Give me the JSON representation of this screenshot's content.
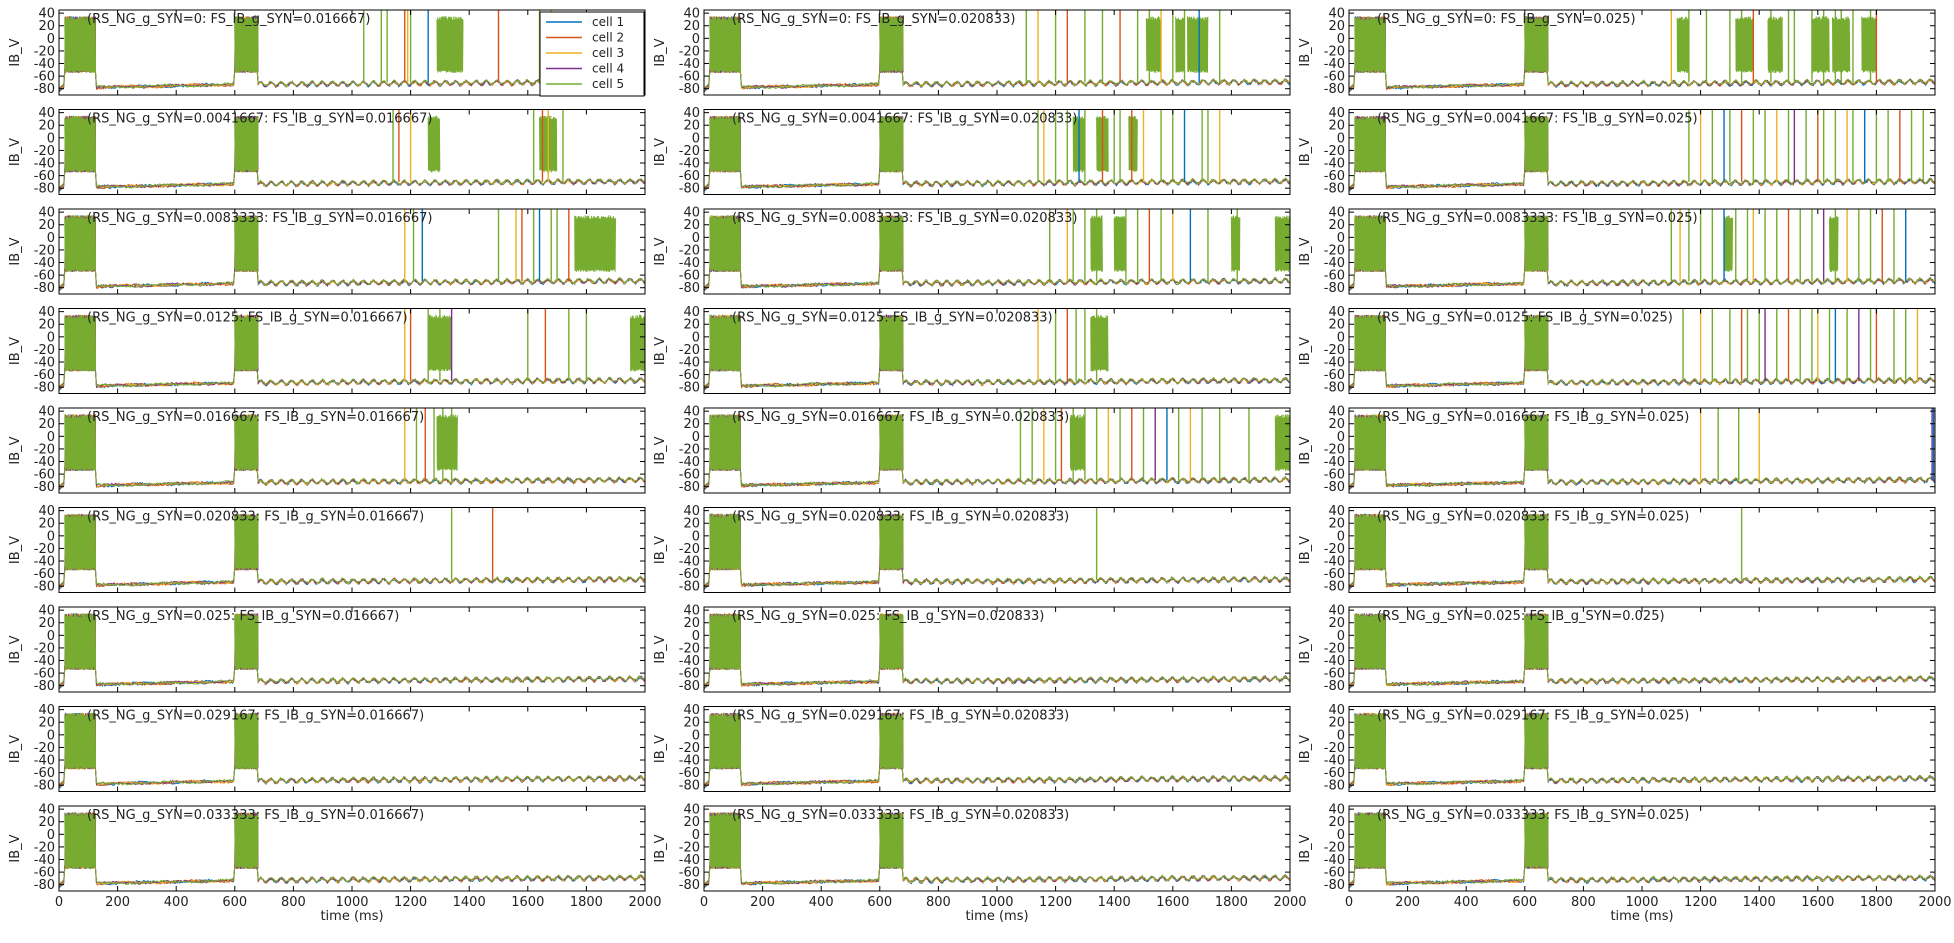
{
  "chart_data": {
    "type": "line",
    "grid_rows": 9,
    "grid_cols": 3,
    "ylabel": "IB_V",
    "xlabel": "time (ms)",
    "xlim": [
      0,
      2000
    ],
    "ylim": [
      -90,
      45
    ],
    "x_ticks": [
      0,
      200,
      400,
      600,
      800,
      1000,
      1200,
      1400,
      1600,
      1800,
      2000
    ],
    "y_ticks": [
      40,
      20,
      0,
      -20,
      -40,
      -60,
      -80
    ],
    "grid": false,
    "legend_position": "top-right of first panel",
    "series": [
      {
        "name": "cell 1",
        "color": "#0072BD"
      },
      {
        "name": "cell 2",
        "color": "#D95319"
      },
      {
        "name": "cell 3",
        "color": "#EDB120"
      },
      {
        "name": "cell 4",
        "color": "#7E2F8E"
      },
      {
        "name": "cell 5",
        "color": "#77AC30"
      }
    ],
    "baseline_mv": -70,
    "burst_windows_ms": [
      [
        20,
        125
      ],
      [
        600,
        680
      ]
    ],
    "burst_range_mv": [
      -55,
      35
    ],
    "spike_peak_mv": 45,
    "panels": [
      {
        "title": "(RS_NG_g_SYN=0: FS_IB_g_SYN=0.016667)",
        "spikes": [
          [
            1040,
            5
          ],
          [
            1100,
            5
          ],
          [
            1120,
            5
          ],
          [
            1180,
            2
          ],
          [
            1190,
            3
          ],
          [
            1200,
            5
          ],
          [
            1260,
            1
          ],
          [
            1500,
            2
          ],
          [
            1640,
            5
          ],
          [
            1680,
            3
          ]
        ],
        "plateaus": [
          [
            1290,
            1380
          ],
          [
            1670,
            1720
          ]
        ]
      },
      {
        "title": "(RS_NG_g_SYN=0: FS_IB_g_SYN=0.020833)",
        "spikes": [
          [
            1100,
            5
          ],
          [
            1140,
            3
          ],
          [
            1200,
            5
          ],
          [
            1240,
            2
          ],
          [
            1300,
            5
          ],
          [
            1360,
            5
          ],
          [
            1420,
            2
          ],
          [
            1480,
            5
          ],
          [
            1520,
            5
          ],
          [
            1560,
            3
          ],
          [
            1600,
            5
          ],
          [
            1640,
            5
          ],
          [
            1690,
            1
          ],
          [
            1760,
            5
          ]
        ],
        "plateaus": [
          [
            1510,
            1560
          ],
          [
            1610,
            1640
          ],
          [
            1650,
            1720
          ]
        ]
      },
      {
        "title": "(RS_NG_g_SYN=0: FS_IB_g_SYN=0.025)",
        "spikes": [
          [
            1100,
            3
          ],
          [
            1160,
            5
          ],
          [
            1220,
            5
          ],
          [
            1300,
            5
          ],
          [
            1340,
            5
          ],
          [
            1380,
            2
          ],
          [
            1440,
            5
          ],
          [
            1500,
            5
          ],
          [
            1520,
            5
          ],
          [
            1580,
            5
          ],
          [
            1620,
            5
          ],
          [
            1660,
            5
          ],
          [
            1680,
            5
          ],
          [
            1720,
            5
          ],
          [
            1780,
            5
          ],
          [
            1800,
            2
          ]
        ],
        "plateaus": [
          [
            1120,
            1160
          ],
          [
            1320,
            1380
          ],
          [
            1430,
            1480
          ],
          [
            1580,
            1640
          ],
          [
            1650,
            1710
          ],
          [
            1750,
            1800
          ]
        ]
      },
      {
        "title": "(RS_NG_g_SYN=0.0041667: FS_IB_g_SYN=0.016667)",
        "spikes": [
          [
            1140,
            5
          ],
          [
            1160,
            2
          ],
          [
            1200,
            3
          ],
          [
            1620,
            5
          ],
          [
            1650,
            2
          ],
          [
            1670,
            3
          ],
          [
            1720,
            5
          ]
        ],
        "plateaus": [
          [
            1260,
            1300
          ],
          [
            1640,
            1700
          ]
        ]
      },
      {
        "title": "(RS_NG_g_SYN=0.0041667: FS_IB_g_SYN=0.020833)",
        "spikes": [
          [
            1140,
            5
          ],
          [
            1160,
            3
          ],
          [
            1200,
            5
          ],
          [
            1240,
            5
          ],
          [
            1280,
            1
          ],
          [
            1300,
            5
          ],
          [
            1360,
            2
          ],
          [
            1400,
            5
          ],
          [
            1420,
            5
          ],
          [
            1460,
            2
          ],
          [
            1500,
            3
          ],
          [
            1560,
            5
          ],
          [
            1600,
            5
          ],
          [
            1640,
            1
          ],
          [
            1700,
            5
          ],
          [
            1720,
            5
          ],
          [
            1760,
            3
          ]
        ],
        "plateaus": [
          [
            1260,
            1300
          ],
          [
            1340,
            1380
          ],
          [
            1450,
            1480
          ]
        ]
      },
      {
        "title": "(RS_NG_g_SYN=0.0041667: FS_IB_g_SYN=0.025)",
        "spikes": [
          [
            1160,
            5
          ],
          [
            1200,
            3
          ],
          [
            1240,
            5
          ],
          [
            1280,
            1
          ],
          [
            1300,
            5
          ],
          [
            1340,
            2
          ],
          [
            1380,
            5
          ],
          [
            1420,
            5
          ],
          [
            1460,
            3
          ],
          [
            1500,
            5
          ],
          [
            1520,
            4
          ],
          [
            1560,
            5
          ],
          [
            1600,
            2
          ],
          [
            1620,
            5
          ],
          [
            1660,
            5
          ],
          [
            1700,
            3
          ],
          [
            1720,
            5
          ],
          [
            1760,
            1
          ],
          [
            1800,
            5
          ],
          [
            1840,
            5
          ],
          [
            1880,
            2
          ],
          [
            1920,
            5
          ],
          [
            1960,
            5
          ]
        ],
        "plateaus": []
      },
      {
        "title": "(RS_NG_g_SYN=0.0083333: FS_IB_g_SYN=0.016667)",
        "spikes": [
          [
            1180,
            3
          ],
          [
            1210,
            5
          ],
          [
            1240,
            1
          ],
          [
            1500,
            5
          ],
          [
            1560,
            3
          ],
          [
            1580,
            2
          ],
          [
            1620,
            5
          ],
          [
            1640,
            1
          ],
          [
            1680,
            5
          ],
          [
            1700,
            5
          ],
          [
            1740,
            2
          ]
        ],
        "plateaus": [
          [
            1760,
            1900
          ]
        ]
      },
      {
        "title": "(RS_NG_g_SYN=0.0083333: FS_IB_g_SYN=0.020833)",
        "spikes": [
          [
            1180,
            5
          ],
          [
            1240,
            3
          ],
          [
            1260,
            5
          ],
          [
            1300,
            5
          ],
          [
            1340,
            5
          ],
          [
            1440,
            5
          ],
          [
            1480,
            5
          ],
          [
            1520,
            2
          ],
          [
            1560,
            5
          ],
          [
            1600,
            3
          ],
          [
            1660,
            1
          ],
          [
            1720,
            5
          ],
          [
            1820,
            5
          ]
        ],
        "plateaus": [
          [
            1320,
            1360
          ],
          [
            1400,
            1440
          ],
          [
            1800,
            1830
          ],
          [
            1950,
            2000
          ]
        ]
      },
      {
        "title": "(RS_NG_g_SYN=0.0083333: FS_IB_g_SYN=0.025)",
        "spikes": [
          [
            1100,
            5
          ],
          [
            1130,
            3
          ],
          [
            1160,
            5
          ],
          [
            1200,
            5
          ],
          [
            1240,
            5
          ],
          [
            1280,
            1
          ],
          [
            1320,
            5
          ],
          [
            1360,
            5
          ],
          [
            1380,
            3
          ],
          [
            1420,
            5
          ],
          [
            1460,
            5
          ],
          [
            1500,
            2
          ],
          [
            1540,
            5
          ],
          [
            1580,
            5
          ],
          [
            1620,
            4
          ],
          [
            1660,
            5
          ],
          [
            1700,
            3
          ],
          [
            1740,
            5
          ],
          [
            1780,
            5
          ],
          [
            1820,
            2
          ],
          [
            1860,
            5
          ],
          [
            1900,
            1
          ]
        ],
        "plateaus": [
          [
            1280,
            1310
          ],
          [
            1640,
            1670
          ]
        ]
      },
      {
        "title": "(RS_NG_g_SYN=0.0125: FS_IB_g_SYN=0.016667)",
        "spikes": [
          [
            1180,
            3
          ],
          [
            1200,
            2
          ],
          [
            1260,
            5
          ],
          [
            1300,
            5
          ],
          [
            1340,
            4
          ],
          [
            1600,
            5
          ],
          [
            1660,
            2
          ],
          [
            1740,
            5
          ],
          [
            1800,
            5
          ]
        ],
        "plateaus": [
          [
            1260,
            1340
          ],
          [
            1950,
            2000
          ]
        ]
      },
      {
        "title": "(RS_NG_g_SYN=0.0125: FS_IB_g_SYN=0.020833)",
        "spikes": [
          [
            1140,
            3
          ],
          [
            1200,
            5
          ],
          [
            1240,
            2
          ],
          [
            1270,
            5
          ],
          [
            1300,
            5
          ],
          [
            1340,
            5
          ]
        ],
        "plateaus": [
          [
            1320,
            1380
          ]
        ]
      },
      {
        "title": "(RS_NG_g_SYN=0.0125: FS_IB_g_SYN=0.025)",
        "spikes": [
          [
            1140,
            5
          ],
          [
            1200,
            3
          ],
          [
            1240,
            5
          ],
          [
            1300,
            5
          ],
          [
            1340,
            2
          ],
          [
            1360,
            5
          ],
          [
            1400,
            5
          ],
          [
            1420,
            4
          ],
          [
            1460,
            5
          ],
          [
            1500,
            2
          ],
          [
            1540,
            5
          ],
          [
            1580,
            5
          ],
          [
            1600,
            3
          ],
          [
            1640,
            5
          ],
          [
            1660,
            1
          ],
          [
            1700,
            5
          ],
          [
            1740,
            4
          ],
          [
            1780,
            5
          ],
          [
            1800,
            2
          ],
          [
            1860,
            5
          ],
          [
            1900,
            5
          ],
          [
            1940,
            3
          ]
        ],
        "plateaus": []
      },
      {
        "title": "(RS_NG_g_SYN=0.016667: FS_IB_g_SYN=0.016667)",
        "spikes": [
          [
            1180,
            3
          ],
          [
            1220,
            5
          ],
          [
            1250,
            2
          ],
          [
            1280,
            5
          ],
          [
            1310,
            5
          ],
          [
            1340,
            5
          ]
        ],
        "plateaus": [
          [
            1290,
            1360
          ]
        ]
      },
      {
        "title": "(RS_NG_g_SYN=0.016667: FS_IB_g_SYN=0.020833)",
        "spikes": [
          [
            1080,
            5
          ],
          [
            1120,
            5
          ],
          [
            1160,
            3
          ],
          [
            1200,
            5
          ],
          [
            1220,
            2
          ],
          [
            1260,
            5
          ],
          [
            1300,
            5
          ],
          [
            1340,
            5
          ],
          [
            1380,
            3
          ],
          [
            1420,
            5
          ],
          [
            1460,
            2
          ],
          [
            1500,
            5
          ],
          [
            1540,
            4
          ],
          [
            1580,
            1
          ],
          [
            1620,
            5
          ],
          [
            1660,
            3
          ],
          [
            1700,
            5
          ],
          [
            1760,
            5
          ],
          [
            1860,
            5
          ]
        ],
        "plateaus": [
          [
            1250,
            1300
          ],
          [
            1950,
            2000
          ]
        ]
      },
      {
        "title": "(RS_NG_g_SYN=0.016667: FS_IB_g_SYN=0.025)",
        "spikes": [
          [
            1200,
            3
          ],
          [
            1260,
            5
          ],
          [
            1330,
            5
          ],
          [
            1400,
            3
          ],
          [
            1990,
            4
          ],
          [
            1995,
            1
          ]
        ],
        "plateaus": []
      },
      {
        "title": "(RS_NG_g_SYN=0.020833: FS_IB_g_SYN=0.016667)",
        "spikes": [
          [
            1340,
            5
          ],
          [
            1480,
            2
          ]
        ],
        "plateaus": []
      },
      {
        "title": "(RS_NG_g_SYN=0.020833: FS_IB_g_SYN=0.020833)",
        "spikes": [
          [
            1340,
            5
          ]
        ],
        "plateaus": []
      },
      {
        "title": "(RS_NG_g_SYN=0.020833: FS_IB_g_SYN=0.025)",
        "spikes": [
          [
            1340,
            5
          ]
        ],
        "plateaus": []
      },
      {
        "title": "(RS_NG_g_SYN=0.025: FS_IB_g_SYN=0.016667)",
        "spikes": [],
        "plateaus": []
      },
      {
        "title": "(RS_NG_g_SYN=0.025: FS_IB_g_SYN=0.020833)",
        "spikes": [],
        "plateaus": []
      },
      {
        "title": "(RS_NG_g_SYN=0.025: FS_IB_g_SYN=0.025)",
        "spikes": [],
        "plateaus": []
      },
      {
        "title": "(RS_NG_g_SYN=0.029167: FS_IB_g_SYN=0.016667)",
        "spikes": [],
        "plateaus": []
      },
      {
        "title": "(RS_NG_g_SYN=0.029167: FS_IB_g_SYN=0.020833)",
        "spikes": [],
        "plateaus": []
      },
      {
        "title": "(RS_NG_g_SYN=0.029167: FS_IB_g_SYN=0.025)",
        "spikes": [],
        "plateaus": []
      },
      {
        "title": "(RS_NG_g_SYN=0.033333: FS_IB_g_SYN=0.016667)",
        "spikes": [],
        "plateaus": []
      },
      {
        "title": "(RS_NG_g_SYN=0.033333: FS_IB_g_SYN=0.020833)",
        "spikes": [],
        "plateaus": []
      },
      {
        "title": "(RS_NG_g_SYN=0.033333: FS_IB_g_SYN=0.025)",
        "spikes": [],
        "plateaus": []
      }
    ]
  }
}
